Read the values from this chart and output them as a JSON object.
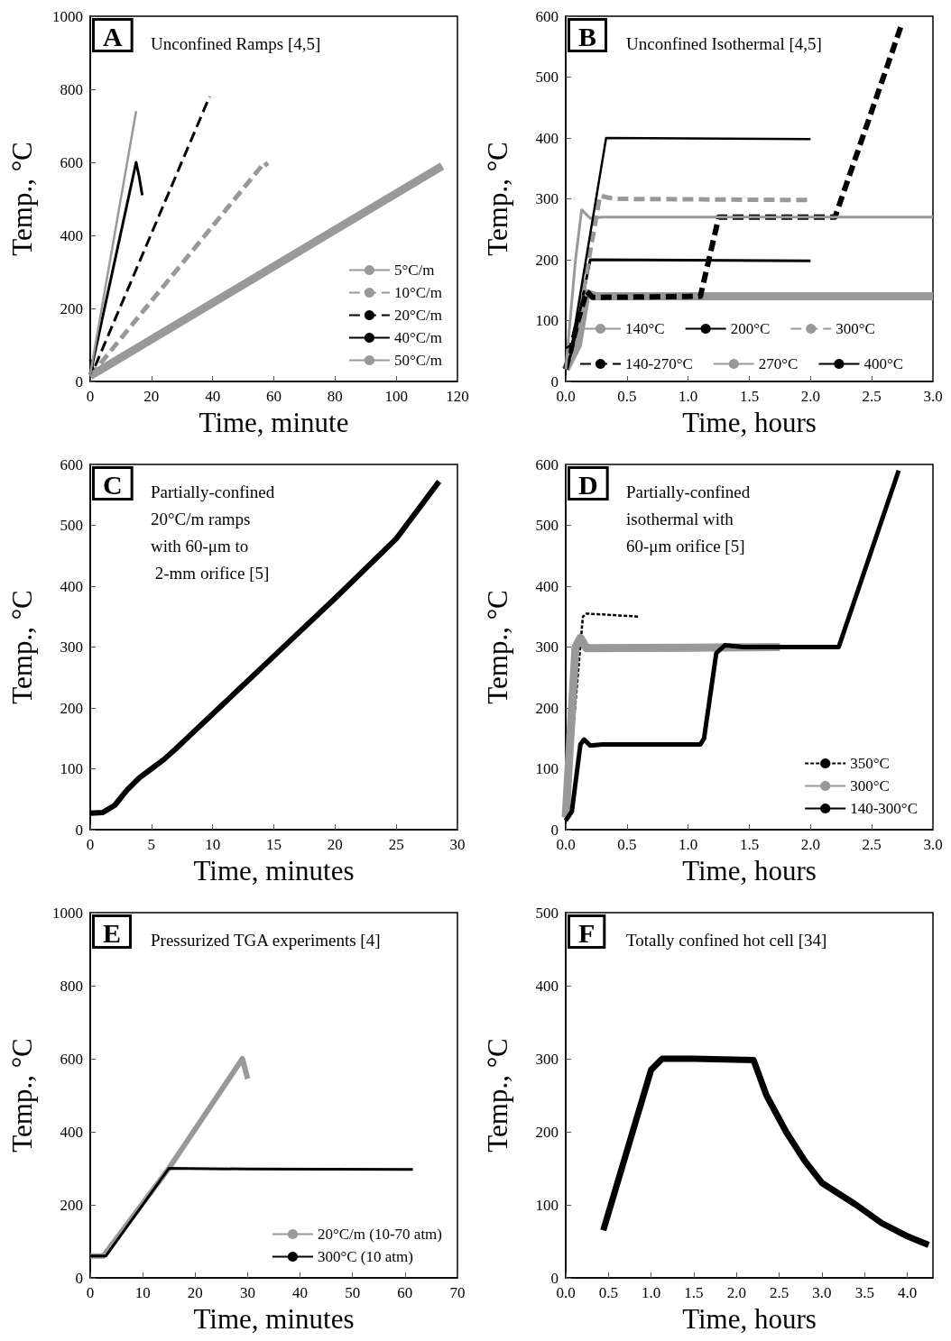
{
  "chart_data": [
    {
      "type": "line",
      "title": "Unconfined Ramps [4,5]",
      "annotations": [
        "A"
      ],
      "xlabel": "Time, minute",
      "ylabel": "Temp., °C",
      "xlim": [
        0,
        120
      ],
      "xticks": [
        0,
        20,
        40,
        60,
        80,
        100,
        120
      ],
      "ylim": [
        0,
        1000
      ],
      "yticks": [
        0,
        200,
        400,
        600,
        800,
        1000
      ],
      "marker": "none",
      "legend": "bottom right",
      "series": [
        {
          "name": "5°C/m",
          "color": "#999999",
          "line_style": "solid",
          "x": [
            0,
            115
          ],
          "values": [
            15,
            590
          ]
        },
        {
          "name": "10°C/m",
          "color": "#999999",
          "line_style": "dashed",
          "x": [
            0,
            57,
            58
          ],
          "values": [
            15,
            600,
            590
          ]
        },
        {
          "name": "20°C/m",
          "color": "#000000",
          "line_style": "dashed",
          "x": [
            0,
            1,
            39
          ],
          "values": [
            60,
            30,
            780
          ]
        },
        {
          "name": "40°C/m",
          "color": "#000000",
          "line_style": "solid",
          "x": [
            0,
            15,
            16,
            17
          ],
          "values": [
            20,
            600,
            560,
            510
          ]
        },
        {
          "name": "50°C/m",
          "color": "#999999",
          "line_style": "solid",
          "x": [
            0,
            15
          ],
          "values": [
            20,
            740
          ]
        }
      ]
    },
    {
      "type": "line",
      "title": "Unconfined Isothermal [4,5]",
      "annotations": [
        "B"
      ],
      "xlabel": "Time, hours",
      "ylabel": "Temp., °C",
      "xlim": [
        0,
        3
      ],
      "xticks": [
        {
          "value": 0,
          "label": "0.0"
        },
        0.5,
        {
          "value": 1,
          "label": "1.0"
        },
        1.5,
        {
          "value": 2,
          "label": "2.0"
        },
        2.5,
        {
          "value": 3,
          "label": "3.0"
        }
      ],
      "ylim": [
        0,
        600
      ],
      "yticks": [
        0,
        100,
        200,
        300,
        400,
        500,
        600
      ],
      "marker": "none",
      "legend": "bottom",
      "series": [
        {
          "name": "140°C",
          "color": "#999999",
          "line_style": "solid",
          "x": [
            0,
            0.1,
            0.17,
            0.25,
            3
          ],
          "values": [
            20,
            60,
            145,
            140,
            140
          ]
        },
        {
          "name": "200°C",
          "color": "#000000",
          "line_style": "solid",
          "x": [
            0,
            0.05,
            0.2,
            2
          ],
          "values": [
            20,
            50,
            200,
            198
          ]
        },
        {
          "name": "300°C",
          "color": "#999999",
          "line_style": "dashed",
          "x": [
            0,
            0.1,
            0.28,
            0.4,
            2
          ],
          "values": [
            20,
            100,
            305,
            300,
            298
          ]
        },
        {
          "name": "140-270°C",
          "color": "#000000",
          "line_style": "dashed",
          "x": [
            0,
            0.1,
            0.17,
            0.22,
            1.1,
            1.25,
            2.2,
            2.75
          ],
          "values": [
            20,
            100,
            148,
            138,
            140,
            270,
            270,
            590
          ]
        },
        {
          "name": "270°C",
          "color": "#999999",
          "line_style": "solid",
          "x": [
            0,
            0.08,
            0.13,
            0.2,
            0.3,
            3
          ],
          "values": [
            20,
            200,
            282,
            268,
            270,
            270
          ]
        },
        {
          "name": "400°C",
          "color": "#000000",
          "line_style": "solid",
          "x": [
            0,
            0.05,
            0.33,
            2
          ],
          "values": [
            55,
            60,
            400,
            398
          ]
        }
      ]
    },
    {
      "type": "line",
      "title": "Partially-confined\n20°C/m ramps\nwith 60-μm to\n 2-mm orifice [5]",
      "annotations": [
        "C"
      ],
      "xlabel": "Time, minutes",
      "ylabel": "Temp., °C",
      "xlim": [
        0,
        30
      ],
      "xticks": [
        0,
        5,
        10,
        15,
        20,
        25,
        30
      ],
      "ylim": [
        0,
        600
      ],
      "yticks": [
        0,
        100,
        200,
        300,
        400,
        500,
        600
      ],
      "marker": "none",
      "series": [
        {
          "color": "#000000",
          "line_style": "solid",
          "x": [
            0,
            1,
            2,
            3,
            4,
            5,
            6,
            7,
            8,
            10,
            15,
            20,
            25,
            28.5
          ],
          "values": [
            27,
            28,
            40,
            65,
            85,
            100,
            115,
            133,
            152,
            190,
            285,
            380,
            478,
            572
          ]
        }
      ]
    },
    {
      "type": "line",
      "title": "Partially-confined\nisothermal with\n60-μm orifice [5]",
      "annotations": [
        "D"
      ],
      "xlabel": "Time, hours",
      "ylabel": "Temp., °C",
      "xlim": [
        0,
        3
      ],
      "xticks": [
        {
          "value": 0,
          "label": "0.0"
        },
        0.5,
        {
          "value": 1,
          "label": "1.0"
        },
        1.5,
        {
          "value": 2,
          "label": "2.0"
        },
        2.5,
        {
          "value": 3,
          "label": "3.0"
        }
      ],
      "ylim": [
        0,
        600
      ],
      "yticks": [
        0,
        100,
        200,
        300,
        400,
        500,
        600
      ],
      "marker": "none",
      "legend": "bottom right",
      "series": [
        {
          "name": "350°C",
          "color": "#000000",
          "line_style": "dotted",
          "x": [
            0,
            0.14,
            0.17,
            0.6
          ],
          "values": [
            20,
            350,
            355,
            350
          ]
        },
        {
          "name": "300°C",
          "color": "#999999",
          "line_style": "solid",
          "x": [
            0,
            0.08,
            0.12,
            0.17,
            1.75
          ],
          "values": [
            20,
            300,
            315,
            298,
            300
          ]
        },
        {
          "name": "140-300°C",
          "color": "#000000",
          "line_style": "solid",
          "x": [
            0,
            0.05,
            0.12,
            0.15,
            0.2,
            0.3,
            1.1,
            1.13,
            1.23,
            1.3,
            1.45,
            2.23,
            2.72
          ],
          "values": [
            15,
            30,
            140,
            148,
            138,
            140,
            140,
            150,
            290,
            303,
            300,
            300,
            590
          ]
        }
      ]
    },
    {
      "type": "line",
      "title": "Pressurized TGA experiments [4]",
      "annotations": [
        "E"
      ],
      "xlabel": "Time, minutes",
      "ylabel": "Temp., °C",
      "xlim": [
        0,
        70
      ],
      "xticks": [
        0,
        10,
        20,
        30,
        40,
        50,
        60,
        70
      ],
      "ylim": [
        0,
        1000
      ],
      "yticks": [
        0,
        200,
        400,
        600,
        800,
        1000
      ],
      "marker": "none",
      "legend": "bottom right",
      "series": [
        {
          "name": "20°C/m (10-70 atm)",
          "color": "#999999",
          "line_style": "solid",
          "x": [
            0,
            2.5,
            15,
            29,
            30
          ],
          "values": [
            60,
            60,
            300,
            600,
            545
          ]
        },
        {
          "name": "300°C (10 atm)",
          "color": "#000000",
          "line_style": "solid",
          "x": [
            0,
            3,
            15,
            30,
            61.5
          ],
          "values": [
            60,
            60,
            300,
            298,
            297
          ]
        }
      ]
    },
    {
      "type": "line",
      "title": "Totally confined hot cell [34]",
      "annotations": [
        "F"
      ],
      "xlabel": "Time, hours",
      "ylabel": "Temp., °C",
      "xlim": [
        0,
        4.3
      ],
      "xticks": [
        {
          "value": 0,
          "label": "0.0"
        },
        0.5,
        {
          "value": 1,
          "label": "1.0"
        },
        1.5,
        {
          "value": 2,
          "label": "2.0"
        },
        2.5,
        {
          "value": 3,
          "label": "3.0"
        },
        3.5,
        {
          "value": 4,
          "label": "4.0"
        }
      ],
      "ylim": [
        0,
        500
      ],
      "yticks": [
        0,
        100,
        200,
        300,
        400,
        500
      ],
      "marker": "none",
      "series": [
        {
          "color": "#000000",
          "line_style": "solid",
          "x": [
            0.44,
            1.0,
            1.13,
            1.5,
            2.2,
            2.35,
            2.58,
            2.8,
            3.0,
            3.4,
            3.7,
            4.0,
            4.25
          ],
          "values": [
            65,
            285,
            300,
            300,
            298,
            250,
            200,
            160,
            130,
            100,
            75,
            57,
            45
          ]
        }
      ]
    }
  ]
}
